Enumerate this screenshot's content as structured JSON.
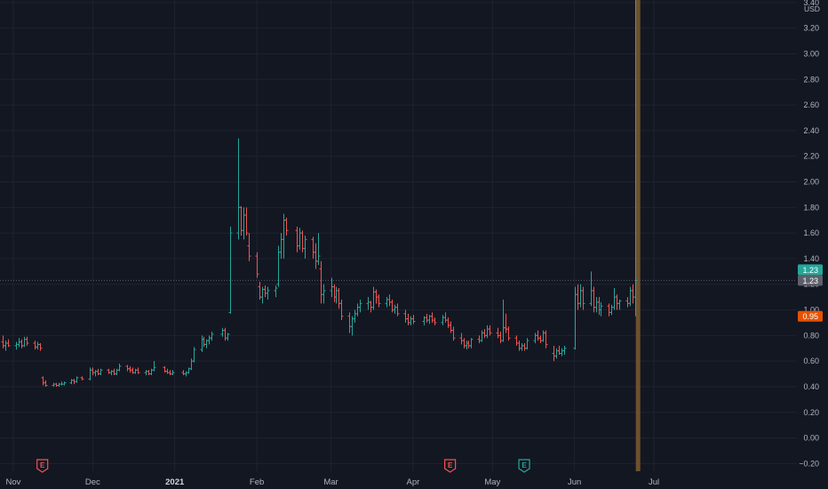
{
  "chart_data": {
    "type": "ohlc",
    "currency": "USD",
    "y_ticks": [
      "3.40",
      "3.20",
      "3.00",
      "2.80",
      "2.60",
      "2.40",
      "2.20",
      "2.00",
      "1.80",
      "1.60",
      "1.40",
      "1.20",
      "1.00",
      "0.80",
      "0.60",
      "0.40",
      "0.20",
      "0.00",
      "-0.20"
    ],
    "ylim": [
      -0.26,
      3.42
    ],
    "x_ticks": [
      {
        "label": "Nov",
        "date": "2020-11-01",
        "bold": false
      },
      {
        "label": "Dec",
        "date": "2020-12-01",
        "bold": false
      },
      {
        "label": "2021",
        "date": "2021-01-01",
        "bold": true
      },
      {
        "label": "Feb",
        "date": "2021-02-01",
        "bold": false
      },
      {
        "label": "Mar",
        "date": "2021-03-01",
        "bold": false
      },
      {
        "label": "Apr",
        "date": "2021-04-01",
        "bold": false
      },
      {
        "label": "May",
        "date": "2021-05-01",
        "bold": false
      },
      {
        "label": "Jun",
        "date": "2021-06-01",
        "bold": false
      },
      {
        "label": "Jul",
        "date": "2021-07-01",
        "bold": false
      }
    ],
    "bar_dates": [
      "2020-10-28",
      "2020-10-29",
      "2020-10-30",
      "2020-11-02",
      "2020-11-03",
      "2020-11-04",
      "2020-11-05",
      "2020-11-06",
      "2020-11-09",
      "2020-11-10",
      "2020-11-11",
      "2020-11-12",
      "2020-11-13",
      "2020-11-16",
      "2020-11-17",
      "2020-11-18",
      "2020-11-19",
      "2020-11-20",
      "2020-11-23",
      "2020-11-24",
      "2020-11-25",
      "2020-11-27",
      "2020-11-30",
      "2020-12-01",
      "2020-12-02",
      "2020-12-03",
      "2020-12-04",
      "2020-12-07",
      "2020-12-08",
      "2020-12-09",
      "2020-12-10",
      "2020-12-11",
      "2020-12-14",
      "2020-12-15",
      "2020-12-16",
      "2020-12-17",
      "2020-12-18",
      "2020-12-21",
      "2020-12-22",
      "2020-12-23",
      "2020-12-24",
      "2020-12-28",
      "2020-12-29",
      "2020-12-30",
      "2020-12-31",
      "2021-01-04",
      "2021-01-05",
      "2021-01-06",
      "2021-01-07",
      "2021-01-08",
      "2021-01-11",
      "2021-01-12",
      "2021-01-13",
      "2021-01-14",
      "2021-01-15",
      "2021-01-19",
      "2021-01-20",
      "2021-01-21",
      "2021-01-22",
      "2021-01-25",
      "2021-01-26",
      "2021-01-27",
      "2021-01-28",
      "2021-01-29",
      "2021-02-01",
      "2021-02-02",
      "2021-02-03",
      "2021-02-04",
      "2021-02-05",
      "2021-02-08",
      "2021-02-09",
      "2021-02-10",
      "2021-02-11",
      "2021-02-12",
      "2021-02-16",
      "2021-02-17",
      "2021-02-18",
      "2021-02-19",
      "2021-02-22",
      "2021-02-23",
      "2021-02-24",
      "2021-02-25",
      "2021-02-26",
      "2021-03-01",
      "2021-03-02",
      "2021-03-03",
      "2021-03-04",
      "2021-03-05",
      "2021-03-08",
      "2021-03-09",
      "2021-03-10",
      "2021-03-11",
      "2021-03-12",
      "2021-03-15",
      "2021-03-16",
      "2021-03-17",
      "2021-03-18",
      "2021-03-19",
      "2021-03-22",
      "2021-03-23",
      "2021-03-24",
      "2021-03-25",
      "2021-03-26",
      "2021-03-29",
      "2021-03-30",
      "2021-03-31",
      "2021-04-01",
      "2021-04-05",
      "2021-04-06",
      "2021-04-07",
      "2021-04-08",
      "2021-04-09",
      "2021-04-12",
      "2021-04-13",
      "2021-04-14",
      "2021-04-15",
      "2021-04-16",
      "2021-04-19",
      "2021-04-20",
      "2021-04-21",
      "2021-04-22",
      "2021-04-23",
      "2021-04-26",
      "2021-04-27",
      "2021-04-28",
      "2021-04-29",
      "2021-04-30",
      "2021-05-03",
      "2021-05-04",
      "2021-05-05",
      "2021-05-06",
      "2021-05-07",
      "2021-05-10",
      "2021-05-11",
      "2021-05-12",
      "2021-05-13",
      "2021-05-14",
      "2021-05-17",
      "2021-05-18",
      "2021-05-19",
      "2021-05-20",
      "2021-05-21",
      "2021-05-24",
      "2021-05-25",
      "2021-05-26",
      "2021-05-27",
      "2021-05-28",
      "2021-06-01",
      "2021-06-02",
      "2021-06-03",
      "2021-06-04",
      "2021-06-07",
      "2021-06-08",
      "2021-06-09",
      "2021-06-10",
      "2021-06-11",
      "2021-06-14",
      "2021-06-15",
      "2021-06-16",
      "2021-06-17",
      "2021-06-18",
      "2021-06-21",
      "2021-06-22",
      "2021-06-23",
      "2021-06-24",
      "2021-06-25"
    ],
    "ohlc": [
      [
        0.75,
        0.8,
        0.7,
        0.72
      ],
      [
        0.72,
        0.76,
        0.68,
        0.74
      ],
      [
        0.74,
        0.77,
        0.71,
        0.72
      ],
      [
        0.72,
        0.75,
        0.69,
        0.73
      ],
      [
        0.73,
        0.78,
        0.71,
        0.75
      ],
      [
        0.75,
        0.77,
        0.7,
        0.72
      ],
      [
        0.72,
        0.79,
        0.71,
        0.77
      ],
      [
        0.77,
        0.79,
        0.72,
        0.74
      ],
      [
        0.74,
        0.76,
        0.69,
        0.71
      ],
      [
        0.71,
        0.75,
        0.69,
        0.73
      ],
      [
        0.73,
        0.74,
        0.68,
        0.7
      ],
      [
        0.47,
        0.48,
        0.41,
        0.43
      ],
      [
        0.43,
        0.45,
        0.4,
        0.41
      ],
      [
        0.41,
        0.43,
        0.4,
        0.42
      ],
      [
        0.42,
        0.43,
        0.4,
        0.41
      ],
      [
        0.41,
        0.43,
        0.4,
        0.42
      ],
      [
        0.42,
        0.44,
        0.41,
        0.42
      ],
      [
        0.42,
        0.44,
        0.41,
        0.43
      ],
      [
        0.43,
        0.46,
        0.42,
        0.45
      ],
      [
        0.45,
        0.46,
        0.42,
        0.44
      ],
      [
        0.44,
        0.48,
        0.43,
        0.47
      ],
      [
        0.47,
        0.48,
        0.45,
        0.46
      ],
      [
        0.46,
        0.55,
        0.45,
        0.53
      ],
      [
        0.53,
        0.55,
        0.49,
        0.51
      ],
      [
        0.51,
        0.53,
        0.48,
        0.52
      ],
      [
        0.52,
        0.54,
        0.49,
        0.5
      ],
      [
        0.5,
        0.54,
        0.49,
        0.53
      ],
      [
        0.53,
        0.54,
        0.5,
        0.51
      ],
      [
        0.51,
        0.53,
        0.49,
        0.52
      ],
      [
        0.52,
        0.54,
        0.49,
        0.5
      ],
      [
        0.5,
        0.54,
        0.49,
        0.53
      ],
      [
        0.53,
        0.58,
        0.52,
        0.56
      ],
      [
        0.56,
        0.57,
        0.52,
        0.54
      ],
      [
        0.54,
        0.56,
        0.51,
        0.53
      ],
      [
        0.53,
        0.55,
        0.5,
        0.51
      ],
      [
        0.51,
        0.54,
        0.5,
        0.53
      ],
      [
        0.53,
        0.55,
        0.5,
        0.51
      ],
      [
        0.51,
        0.53,
        0.49,
        0.52
      ],
      [
        0.52,
        0.53,
        0.49,
        0.5
      ],
      [
        0.5,
        0.54,
        0.49,
        0.53
      ],
      [
        0.53,
        0.6,
        0.52,
        0.55
      ],
      [
        0.55,
        0.56,
        0.51,
        0.52
      ],
      [
        0.52,
        0.54,
        0.5,
        0.51
      ],
      [
        0.51,
        0.53,
        0.49,
        0.5
      ],
      [
        0.5,
        0.53,
        0.49,
        0.51
      ],
      [
        0.51,
        0.53,
        0.49,
        0.5
      ],
      [
        0.5,
        0.52,
        0.48,
        0.51
      ],
      [
        0.51,
        0.55,
        0.5,
        0.54
      ],
      [
        0.54,
        0.62,
        0.53,
        0.6
      ],
      [
        0.6,
        0.71,
        0.59,
        0.69
      ],
      [
        0.69,
        0.8,
        0.67,
        0.77
      ],
      [
        0.77,
        0.79,
        0.71,
        0.73
      ],
      [
        0.73,
        0.77,
        0.7,
        0.76
      ],
      [
        0.76,
        0.8,
        0.73,
        0.78
      ],
      [
        0.78,
        0.83,
        0.76,
        0.81
      ],
      [
        0.81,
        0.86,
        0.79,
        0.84
      ],
      [
        0.84,
        0.86,
        0.76,
        0.78
      ],
      [
        0.78,
        0.82,
        0.76,
        0.81
      ],
      [
        0.98,
        1.65,
        0.97,
        1.6
      ],
      [
        1.6,
        2.34,
        1.55,
        1.8
      ],
      [
        1.8,
        1.81,
        1.58,
        1.62
      ],
      [
        1.62,
        1.8,
        1.55,
        1.74
      ],
      [
        1.74,
        1.8,
        1.58,
        1.6
      ],
      [
        1.5,
        1.6,
        1.38,
        1.42
      ],
      [
        1.42,
        1.45,
        1.25,
        1.28
      ],
      [
        1.18,
        1.22,
        1.08,
        1.1
      ],
      [
        1.1,
        1.18,
        1.05,
        1.16
      ],
      [
        1.16,
        1.19,
        1.1,
        1.13
      ],
      [
        1.13,
        1.18,
        1.08,
        1.15
      ],
      [
        1.15,
        1.19,
        1.1,
        1.17
      ],
      [
        1.2,
        1.5,
        1.18,
        1.45
      ],
      [
        1.45,
        1.6,
        1.4,
        1.55
      ],
      [
        1.55,
        1.75,
        1.4,
        1.7
      ],
      [
        1.7,
        1.72,
        1.58,
        1.62
      ],
      [
        1.62,
        1.65,
        1.45,
        1.5
      ],
      [
        1.5,
        1.64,
        1.47,
        1.6
      ],
      [
        1.6,
        1.62,
        1.45,
        1.48
      ],
      [
        1.48,
        1.58,
        1.4,
        1.55
      ],
      [
        1.55,
        1.57,
        1.4,
        1.45
      ],
      [
        1.45,
        1.52,
        1.32,
        1.38
      ],
      [
        1.38,
        1.6,
        1.35,
        1.42
      ],
      [
        1.32,
        1.38,
        1.05,
        1.12
      ],
      [
        1.12,
        1.2,
        1.05,
        1.15
      ],
      [
        1.15,
        1.25,
        1.1,
        1.18
      ],
      [
        1.18,
        1.2,
        1.06,
        1.1
      ],
      [
        1.1,
        1.18,
        1.05,
        1.15
      ],
      [
        1.15,
        1.17,
        1.01,
        1.05
      ],
      [
        1.05,
        1.08,
        0.92,
        0.95
      ],
      [
        0.95,
        0.98,
        0.82,
        0.87
      ],
      [
        0.87,
        0.95,
        0.8,
        0.93
      ],
      [
        0.93,
        1.0,
        0.9,
        0.97
      ],
      [
        0.97,
        1.05,
        0.95,
        1.02
      ],
      [
        1.02,
        1.08,
        0.98,
        1.05
      ],
      [
        1.05,
        1.1,
        1.0,
        1.06
      ],
      [
        1.06,
        1.07,
        0.98,
        1.02
      ],
      [
        1.02,
        1.18,
        1.0,
        1.14
      ],
      [
        1.14,
        1.16,
        1.05,
        1.1
      ],
      [
        1.1,
        1.12,
        1.02,
        1.05
      ],
      [
        1.05,
        1.1,
        1.02,
        1.08
      ],
      [
        1.08,
        1.12,
        1.03,
        1.06
      ],
      [
        1.06,
        1.08,
        0.98,
        1.0
      ],
      [
        1.0,
        1.04,
        0.97,
        1.02
      ],
      [
        1.02,
        1.05,
        0.95,
        0.97
      ],
      [
        0.97,
        1.0,
        0.9,
        0.93
      ],
      [
        0.93,
        0.97,
        0.88,
        0.9
      ],
      [
        0.9,
        0.95,
        0.88,
        0.93
      ],
      [
        0.93,
        0.96,
        0.89,
        0.91
      ],
      [
        0.91,
        0.95,
        0.88,
        0.94
      ],
      [
        0.94,
        0.97,
        0.9,
        0.92
      ],
      [
        0.92,
        0.96,
        0.89,
        0.95
      ],
      [
        0.95,
        0.98,
        0.9,
        0.92
      ],
      [
        0.92,
        0.94,
        0.88,
        0.9
      ],
      [
        0.9,
        0.96,
        0.88,
        0.94
      ],
      [
        0.94,
        0.98,
        0.9,
        0.92
      ],
      [
        0.92,
        0.94,
        0.86,
        0.88
      ],
      [
        0.88,
        0.91,
        0.82,
        0.84
      ],
      [
        0.84,
        0.87,
        0.76,
        0.78
      ],
      [
        0.78,
        0.82,
        0.73,
        0.76
      ],
      [
        0.76,
        0.78,
        0.7,
        0.72
      ],
      [
        0.72,
        0.76,
        0.69,
        0.74
      ],
      [
        0.74,
        0.76,
        0.7,
        0.72
      ],
      [
        0.72,
        0.78,
        0.7,
        0.77
      ],
      [
        0.77,
        0.8,
        0.74,
        0.76
      ],
      [
        0.76,
        0.84,
        0.75,
        0.82
      ],
      [
        0.82,
        0.85,
        0.78,
        0.8
      ],
      [
        0.8,
        0.88,
        0.78,
        0.85
      ],
      [
        0.85,
        0.88,
        0.8,
        0.82
      ],
      [
        0.82,
        0.86,
        0.78,
        0.8
      ],
      [
        0.8,
        0.83,
        0.74,
        0.76
      ],
      [
        0.76,
        1.08,
        0.75,
        0.86
      ],
      [
        0.86,
        0.97,
        0.82,
        0.85
      ],
      [
        0.85,
        0.87,
        0.76,
        0.78
      ],
      [
        0.78,
        0.8,
        0.72,
        0.74
      ],
      [
        0.74,
        0.76,
        0.68,
        0.7
      ],
      [
        0.7,
        0.74,
        0.68,
        0.72
      ],
      [
        0.72,
        0.74,
        0.68,
        0.7
      ],
      [
        0.7,
        0.78,
        0.69,
        0.76
      ],
      [
        0.76,
        0.82,
        0.74,
        0.8
      ],
      [
        0.8,
        0.84,
        0.76,
        0.78
      ],
      [
        0.78,
        0.8,
        0.74,
        0.76
      ],
      [
        0.76,
        0.84,
        0.75,
        0.82
      ],
      [
        0.82,
        0.84,
        0.7,
        0.73
      ],
      [
        0.66,
        0.72,
        0.6,
        0.64
      ],
      [
        0.64,
        0.7,
        0.62,
        0.68
      ],
      [
        0.68,
        0.72,
        0.65,
        0.66
      ],
      [
        0.66,
        0.7,
        0.64,
        0.68
      ],
      [
        0.68,
        0.72,
        0.65,
        0.7
      ],
      [
        0.7,
        1.18,
        0.69,
        1.12
      ],
      [
        1.12,
        1.2,
        1.0,
        1.05
      ],
      [
        1.05,
        1.2,
        1.02,
        1.15
      ],
      [
        1.15,
        1.18,
        1.0,
        1.05
      ],
      [
        1.05,
        1.3,
        1.03,
        1.15
      ],
      [
        1.15,
        1.18,
        0.98,
        1.02
      ],
      [
        1.02,
        1.1,
        0.98,
        1.06
      ],
      [
        1.06,
        1.1,
        0.96,
        1.0
      ],
      [
        1.0,
        1.06,
        0.95,
        1.03
      ],
      [
        1.03,
        1.05,
        0.95,
        0.98
      ],
      [
        0.98,
        1.04,
        0.96,
        1.02
      ],
      [
        1.02,
        1.17,
        1.0,
        1.1
      ],
      [
        1.1,
        1.12,
        1.0,
        1.05
      ],
      [
        1.05,
        1.08,
        1.0,
        1.07
      ],
      [
        1.07,
        1.1,
        1.02,
        1.05
      ],
      [
        1.05,
        1.18,
        1.03,
        1.15
      ],
      [
        1.15,
        1.2,
        1.05,
        1.1
      ],
      [
        1.1,
        3.45,
        0.95,
        1.23
      ]
    ],
    "volume_bar": {
      "date": "2021-06-25",
      "relative_height": 1.0,
      "color": "#7f5a2f"
    },
    "last_price": {
      "value": 1.23,
      "labels": [
        "1.23",
        "1.23"
      ],
      "colors": [
        "#26a69a",
        "#5d606b"
      ]
    },
    "low_marker": {
      "value": 0.95,
      "label": "0.95",
      "color": "#e65100"
    },
    "earnings": [
      {
        "date": "2020-11-12",
        "letter": "E",
        "color": "#ef5350"
      },
      {
        "date": "2021-04-15",
        "letter": "E",
        "color": "#ef5350"
      },
      {
        "date": "2021-05-13",
        "letter": "E",
        "color": "#26a69a"
      }
    ],
    "colors": {
      "up": "#26a69a",
      "down": "#ef5350",
      "background": "#131722",
      "grid": "#1f2330",
      "axis_text": "#b2b5be"
    },
    "grid": true
  }
}
